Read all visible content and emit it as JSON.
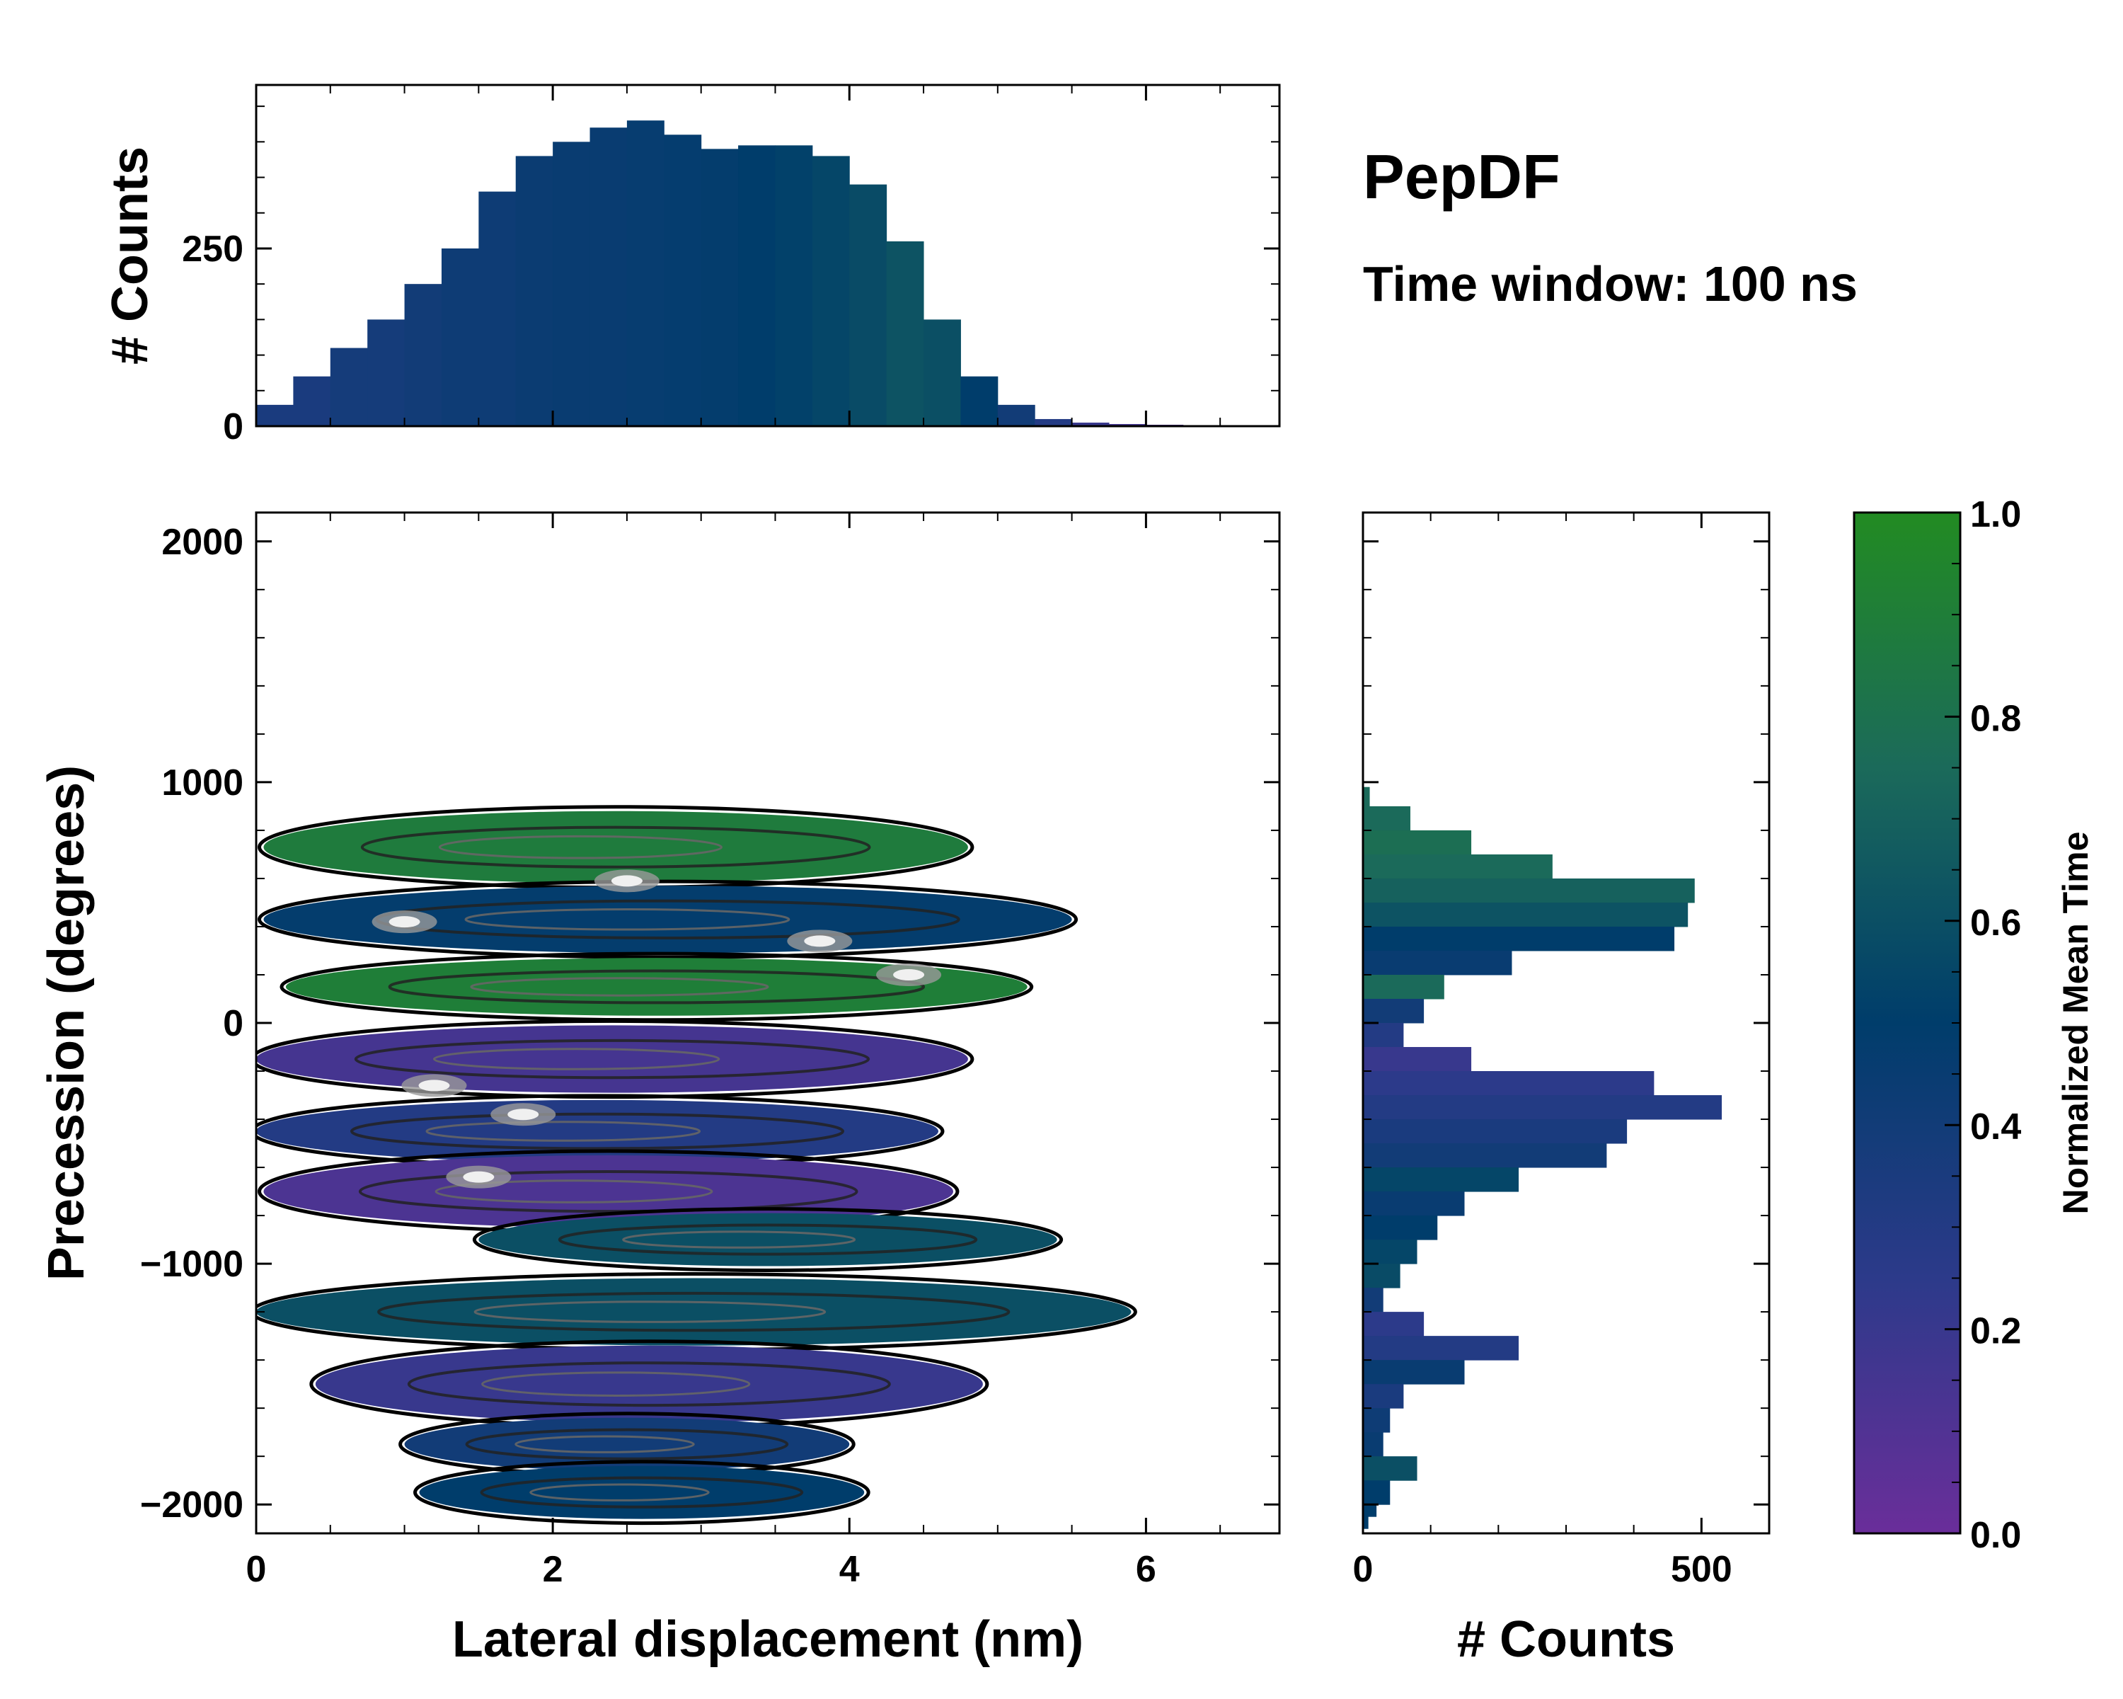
{
  "chart_data": {
    "type": "heatmap",
    "title": "PepDF",
    "subtitle": "Time window: 100 ns",
    "xlabel": "Lateral displacement (nm)",
    "ylabel": "Precession (degrees)",
    "xlim": [
      0,
      6.9
    ],
    "ylim": [
      -2120,
      2120
    ],
    "xticks": [
      0,
      2,
      4,
      6
    ],
    "xtick_labels": [
      "0",
      "2",
      "4",
      "6"
    ],
    "yticks": [
      2000,
      1000,
      0,
      -1000,
      -2000
    ],
    "ytick_labels": [
      "2000",
      "1000",
      "0",
      "−1000",
      "−2000"
    ],
    "colorbar": {
      "label": "Normalized Mean Time",
      "range": [
        0.0,
        1.0
      ],
      "ticks": [
        0.0,
        0.2,
        0.4,
        0.6,
        0.8,
        1.0
      ],
      "tick_labels": [
        "0.0",
        "0.2",
        "0.4",
        "0.6",
        "0.8",
        "1.0"
      ],
      "colors": [
        "#6a2e9a",
        "#2c3a8a",
        "#003d6b",
        "#1b6a5a",
        "#228b22"
      ]
    },
    "top_histogram": {
      "ylabel": "# Counts",
      "ylim": [
        0,
        480
      ],
      "yticks": [
        0,
        250
      ],
      "ytick_labels": [
        "0",
        "250"
      ],
      "xlim": [
        0,
        6.9
      ],
      "bins_x": [
        0.0,
        0.25,
        0.5,
        0.75,
        1.0,
        1.25,
        1.5,
        1.75,
        2.0,
        2.25,
        2.5,
        2.75,
        3.0,
        3.25,
        3.5,
        3.75,
        4.0,
        4.25,
        4.5,
        4.75,
        5.0,
        5.25,
        5.5,
        5.75,
        6.0
      ],
      "counts": [
        30,
        70,
        110,
        150,
        200,
        250,
        330,
        380,
        400,
        420,
        430,
        410,
        390,
        395,
        395,
        380,
        340,
        260,
        150,
        70,
        30,
        10,
        5,
        3,
        2
      ],
      "mean_time": [
        0.35,
        0.35,
        0.38,
        0.38,
        0.4,
        0.42,
        0.42,
        0.44,
        0.45,
        0.45,
        0.46,
        0.47,
        0.48,
        0.5,
        0.52,
        0.55,
        0.58,
        0.62,
        0.6,
        0.5,
        0.4,
        0.3,
        0.2,
        0.15,
        0.1
      ]
    },
    "right_histogram": {
      "xlabel": "# Counts",
      "xlim": [
        0,
        600
      ],
      "xticks": [
        0,
        500
      ],
      "xtick_labels": [
        "0",
        "500"
      ],
      "bins_y": [
        980,
        900,
        800,
        700,
        600,
        500,
        400,
        300,
        200,
        100,
        0,
        -100,
        -200,
        -300,
        -400,
        -500,
        -600,
        -700,
        -800,
        -900,
        -1000,
        -1100,
        -1200,
        -1300,
        -1400,
        -1500,
        -1600,
        -1700,
        -1800,
        -1900,
        -2000,
        -2050
      ],
      "counts": [
        10,
        70,
        160,
        280,
        490,
        480,
        460,
        220,
        120,
        90,
        60,
        160,
        430,
        530,
        390,
        360,
        230,
        150,
        110,
        80,
        55,
        30,
        90,
        230,
        150,
        60,
        40,
        30,
        80,
        40,
        20,
        8
      ],
      "mean_time": [
        0.75,
        0.75,
        0.78,
        0.75,
        0.7,
        0.62,
        0.5,
        0.45,
        0.75,
        0.4,
        0.3,
        0.2,
        0.25,
        0.3,
        0.35,
        0.4,
        0.55,
        0.45,
        0.5,
        0.55,
        0.58,
        0.4,
        0.25,
        0.3,
        0.45,
        0.35,
        0.42,
        0.45,
        0.6,
        0.5,
        0.5,
        0.5
      ]
    },
    "bands": [
      {
        "y": 730,
        "x0": 0.05,
        "x1": 4.8,
        "half_height": 150,
        "mean_time": 0.88
      },
      {
        "y": 430,
        "x0": 0.05,
        "x1": 5.5,
        "half_height": 140,
        "mean_time": 0.48
      },
      {
        "y": 150,
        "x0": 0.2,
        "x1": 5.2,
        "half_height": 120,
        "mean_time": 0.9
      },
      {
        "y": -150,
        "x0": 0.0,
        "x1": 4.8,
        "half_height": 140,
        "mean_time": 0.15
      },
      {
        "y": -450,
        "x0": 0.0,
        "x1": 4.6,
        "half_height": 130,
        "mean_time": 0.3
      },
      {
        "y": -700,
        "x0": 0.05,
        "x1": 4.7,
        "half_height": 150,
        "mean_time": 0.12
      },
      {
        "y": -900,
        "x0": 1.5,
        "x1": 5.4,
        "half_height": 110,
        "mean_time": 0.6
      },
      {
        "y": -1200,
        "x0": 0.0,
        "x1": 5.9,
        "half_height": 140,
        "mean_time": 0.6
      },
      {
        "y": -1500,
        "x0": 0.4,
        "x1": 4.9,
        "half_height": 160,
        "mean_time": 0.2
      },
      {
        "y": -1750,
        "x0": 1.0,
        "x1": 4.0,
        "half_height": 110,
        "mean_time": 0.4
      },
      {
        "y": -1950,
        "x0": 1.1,
        "x1": 4.1,
        "half_height": 110,
        "mean_time": 0.5
      }
    ],
    "hotspots": [
      {
        "x": 2.5,
        "y": 590
      },
      {
        "x": 1.0,
        "y": 420
      },
      {
        "x": 3.8,
        "y": 340
      },
      {
        "x": 1.2,
        "y": -260
      },
      {
        "x": 1.8,
        "y": -380
      },
      {
        "x": 1.5,
        "y": -640
      },
      {
        "x": 4.4,
        "y": 200
      }
    ]
  }
}
